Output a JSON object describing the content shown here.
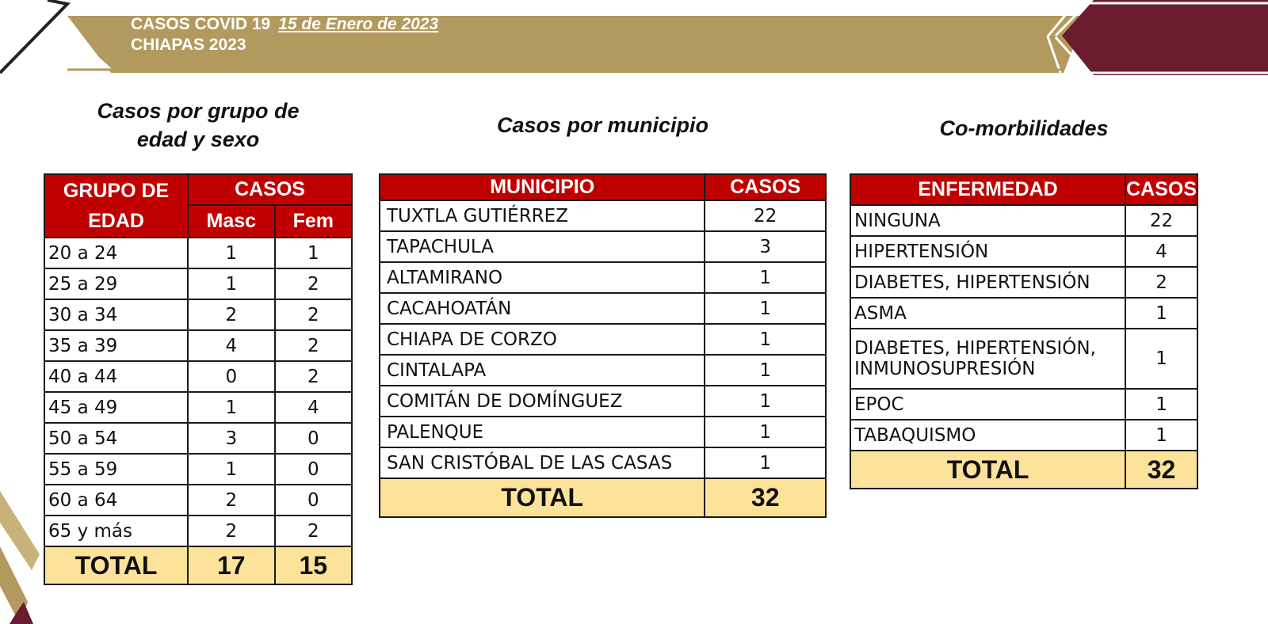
{
  "header": {
    "title": "CASOS COVID 19",
    "date": "15 de Enero de 2023",
    "subtitle": "CHIAPAS 2023",
    "colors": {
      "gold": "#b29a5f",
      "maroon": "#6b1c2f",
      "table_header": "#c00000",
      "total_row": "#fde39a"
    }
  },
  "age_section": {
    "title_line1": "Casos por grupo de",
    "title_line2": "edad y sexo",
    "col_group": "GRUPO DE",
    "col_group2": "EDAD",
    "col_cases": "CASOS",
    "col_masc": "Masc",
    "col_fem": "Fem",
    "rows": [
      {
        "group": "20 a 24",
        "masc": "1",
        "fem": "1"
      },
      {
        "group": "25 a 29",
        "masc": "1",
        "fem": "2"
      },
      {
        "group": "30 a 34",
        "masc": "2",
        "fem": "2"
      },
      {
        "group": "35 a 39",
        "masc": "4",
        "fem": "2"
      },
      {
        "group": "40 a 44",
        "masc": "0",
        "fem": "2"
      },
      {
        "group": "45 a 49",
        "masc": "1",
        "fem": "4"
      },
      {
        "group": "50 a 54",
        "masc": "3",
        "fem": "0"
      },
      {
        "group": "55 a 59",
        "masc": "1",
        "fem": "0"
      },
      {
        "group": "60 a 64",
        "masc": "2",
        "fem": "0"
      },
      {
        "group": "65 y más",
        "masc": "2",
        "fem": "2"
      }
    ],
    "total_label": "TOTAL",
    "total_masc": "17",
    "total_fem": "15"
  },
  "municipio_section": {
    "title": "Casos por municipio",
    "col_municipio": "MUNICIPIO",
    "col_casos": "CASOS",
    "rows": [
      {
        "name": "TUXTLA GUTIÉRREZ",
        "cases": "22"
      },
      {
        "name": "TAPACHULA",
        "cases": "3"
      },
      {
        "name": "ALTAMIRANO",
        "cases": "1"
      },
      {
        "name": "CACAHOATÁN",
        "cases": "1"
      },
      {
        "name": "CHIAPA DE CORZO",
        "cases": "1"
      },
      {
        "name": "CINTALAPA",
        "cases": "1"
      },
      {
        "name": "COMITÁN DE DOMÍNGUEZ",
        "cases": "1"
      },
      {
        "name": "PALENQUE",
        "cases": "1"
      },
      {
        "name": "SAN CRISTÓBAL DE LAS CASAS",
        "cases": "1"
      }
    ],
    "total_label": "TOTAL",
    "total": "32"
  },
  "comorb_section": {
    "title": "Co-morbilidades",
    "col_enfermedad": "ENFERMEDAD",
    "col_casos": "CASOS",
    "rows": [
      {
        "line1": "NINGUNA",
        "line2": "",
        "cases": "22"
      },
      {
        "line1": "HIPERTENSIÓN",
        "line2": "",
        "cases": "4"
      },
      {
        "line1": "DIABETES, HIPERTENSIÓN",
        "line2": "",
        "cases": "2"
      },
      {
        "line1": "ASMA",
        "line2": "",
        "cases": "1"
      },
      {
        "line1": "DIABETES, HIPERTENSIÓN,",
        "line2": "INMUNOSUPRESIÓN",
        "cases": "1"
      },
      {
        "line1": "EPOC",
        "line2": "",
        "cases": "1"
      },
      {
        "line1": "TABAQUISMO",
        "line2": "",
        "cases": "1"
      }
    ],
    "total_label": "TOTAL",
    "total": "32"
  }
}
